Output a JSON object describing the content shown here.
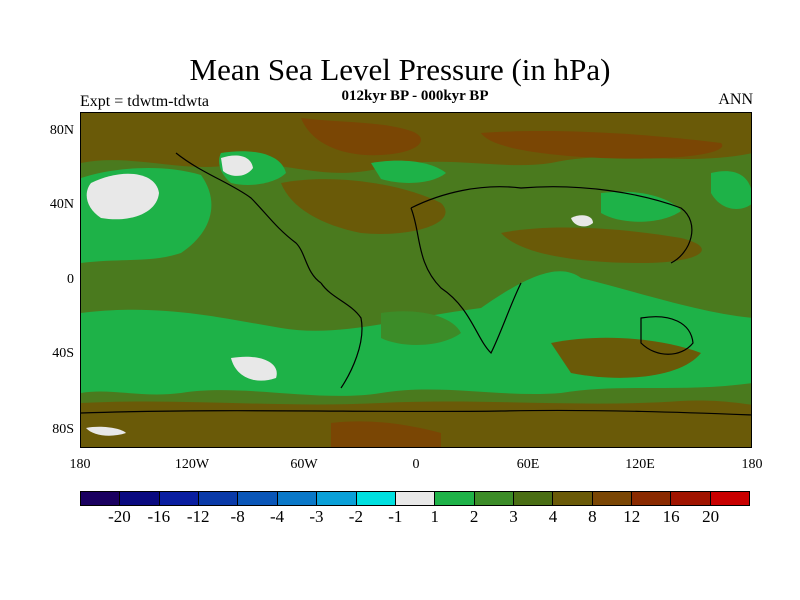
{
  "title": "Mean Sea Level Pressure (in hPa)",
  "subtitle": "012kyr BP - 000kyr BP",
  "left_label": "Expt = tdwtm-tdwta",
  "right_label": "ANN",
  "y_ticks": [
    "80N",
    "40N",
    "0",
    "40S",
    "80S"
  ],
  "x_ticks": [
    "180",
    "120W",
    "60W",
    "0",
    "60E",
    "120E",
    "180"
  ],
  "colorbar": {
    "colors": [
      "#1a0060",
      "#0a0a80",
      "#0a1ea0",
      "#0a3aa8",
      "#0a56b8",
      "#0a78c8",
      "#0aa0d8",
      "#00e0e0",
      "#e8e8e8",
      "#1eb248",
      "#3c8c28",
      "#4a6e14",
      "#6a5a08",
      "#7a4604",
      "#8a2a00",
      "#a01400",
      "#c80000"
    ],
    "labels": [
      "-20",
      "-16",
      "-12",
      "-8",
      "-4",
      "-3",
      "-2",
      "-1",
      "1",
      "2",
      "3",
      "4",
      "8",
      "12",
      "16",
      "20"
    ]
  },
  "map_palette": {
    "ocean_base": "#4a7a1e",
    "green_bright": "#1eb248",
    "green_mid": "#3c8c28",
    "olive": "#4a6e14",
    "brown_olive": "#6a5a08",
    "brown": "#7a4604",
    "white": "#e8e8e8"
  }
}
